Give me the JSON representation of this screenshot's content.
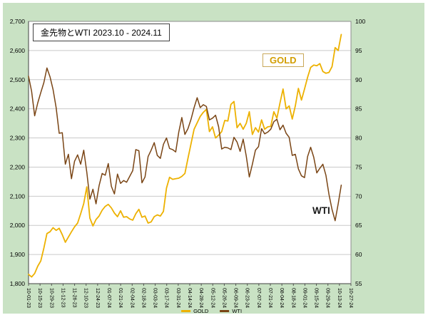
{
  "colors": {
    "panel_background": "#c9e2c4",
    "plot_background": "#ffffff",
    "gridline": "#c9c9c9"
  },
  "chart_data": {
    "type": "line",
    "title": "金先物とWTI 2023.10 - 2024.11",
    "legend": [
      "GOLD",
      "WTI"
    ],
    "annotations": [
      {
        "text": "GOLD",
        "color": "#D39E00",
        "border_color": "#C9A859"
      },
      {
        "text": "WTI",
        "color": "#1A1A1A",
        "border_color": "transparent"
      }
    ],
    "left_axis": {
      "min": 1800,
      "max": 2700,
      "step": 100,
      "tick_labels": [
        "1,800",
        "1,900",
        "2,000",
        "2,100",
        "2,200",
        "2,300",
        "2,400",
        "2,500",
        "2,600",
        "2,700"
      ]
    },
    "right_axis": {
      "min": 55,
      "max": 100,
      "step": 5,
      "tick_labels": [
        "55",
        "60",
        "65",
        "70",
        "75",
        "80",
        "85",
        "90",
        "95",
        "100"
      ]
    },
    "x_tick_labels": [
      "10-01-23",
      "10-15-23",
      "10-29-23",
      "11-12-23",
      "11-26-23",
      "12-10-23",
      "12-24-23",
      "01-07-24",
      "01-21-24",
      "02-04-24",
      "02-18-24",
      "03-03-24",
      "03-17-24",
      "03-31-24",
      "04-14-24",
      "04-28-24",
      "05-12-24",
      "05-26-24",
      "06-09-24",
      "06-23-24",
      "07-07-24",
      "07-21-24",
      "08-04-24",
      "08-18-24",
      "09-01-24",
      "09-15-24",
      "09-29-24",
      "10-13-24",
      "10-27-24"
    ],
    "data_end_fraction": 0.97,
    "series": [
      {
        "name": "GOLD",
        "axis": "left",
        "color": "#EDB100",
        "values": [
          1832,
          1823,
          1835,
          1860,
          1878,
          1922,
          1972,
          1978,
          1992,
          1983,
          1990,
          1968,
          1942,
          1960,
          1978,
          1995,
          2008,
          2040,
          2075,
          2132,
          2025,
          1998,
          2020,
          2032,
          2052,
          2065,
          2072,
          2060,
          2042,
          2030,
          2050,
          2028,
          2030,
          2022,
          2018,
          2040,
          2055,
          2028,
          2032,
          2008,
          2012,
          2030,
          2036,
          2032,
          2048,
          2128,
          2165,
          2158,
          2160,
          2162,
          2168,
          2178,
          2230,
          2280,
          2330,
          2352,
          2374,
          2388,
          2398,
          2322,
          2338,
          2300,
          2310,
          2322,
          2360,
          2358,
          2415,
          2425,
          2335,
          2350,
          2330,
          2350,
          2390,
          2312,
          2335,
          2320,
          2362,
          2330,
          2338,
          2340,
          2390,
          2368,
          2420,
          2468,
          2400,
          2410,
          2365,
          2410,
          2470,
          2430,
          2468,
          2508,
          2542,
          2550,
          2548,
          2555,
          2528,
          2522,
          2525,
          2545,
          2610,
          2600,
          2655
        ]
      },
      {
        "name": "WTI",
        "axis": "right",
        "color": "#7A4515",
        "values": [
          90.6,
          88.0,
          83.8,
          86.0,
          87.8,
          89.5,
          92.0,
          90.5,
          88.3,
          85.2,
          80.8,
          80.9,
          75.5,
          77.2,
          73.0,
          76.0,
          77.1,
          75.5,
          77.9,
          74.1,
          69.5,
          71.2,
          68.7,
          71.8,
          73.9,
          73.6,
          75.6,
          71.7,
          70.4,
          73.8,
          72.2,
          72.7,
          72.4,
          73.4,
          74.4,
          78.0,
          77.8,
          72.3,
          73.3,
          76.8,
          77.9,
          79.2,
          77.0,
          76.5,
          78.9,
          80.0,
          78.2,
          78.0,
          77.6,
          81.0,
          83.5,
          80.6,
          81.6,
          83.2,
          85.2,
          86.9,
          85.2,
          85.7,
          85.4,
          83.1,
          83.4,
          83.9,
          81.9,
          78.1,
          78.4,
          78.3,
          78.0,
          80.1,
          79.3,
          77.7,
          79.8,
          76.9,
          73.3,
          75.5,
          77.9,
          78.5,
          81.6,
          80.7,
          81.0,
          81.5,
          82.8,
          83.2,
          81.4,
          82.2,
          80.8,
          80.1,
          77.0,
          77.2,
          74.7,
          73.5,
          73.2,
          76.8,
          78.4,
          76.7,
          74.0,
          74.8,
          75.5,
          73.6,
          70.3,
          67.7,
          65.8,
          68.7,
          71.9
        ]
      }
    ]
  }
}
